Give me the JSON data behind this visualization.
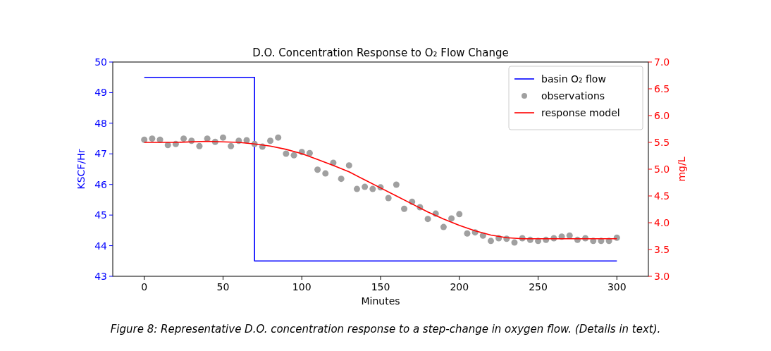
{
  "chart_data": {
    "type": "scatter",
    "title": "D.O. Concentration Response to O₂ Flow Change",
    "xlabel": "Minutes",
    "ylabel": "KSCF/Hr",
    "y2label": "mg/L",
    "xlim": [
      -20,
      320
    ],
    "xticks": [
      0,
      50,
      100,
      150,
      200,
      250,
      300
    ],
    "ylim": [
      43,
      50
    ],
    "yticks": [
      43,
      44,
      45,
      46,
      47,
      48,
      49,
      50
    ],
    "y2lim": [
      3.0,
      7.0
    ],
    "y2ticks": [
      {
        "value": 3.0,
        "label": "3.0"
      },
      {
        "value": 3.5,
        "label": "3.5"
      },
      {
        "value": 4.0,
        "label": "4.0"
      },
      {
        "value": 4.5,
        "label": "4.5"
      },
      {
        "value": 5.0,
        "label": "5.0"
      },
      {
        "value": 5.5,
        "label": "5.5"
      },
      {
        "value": 6.0,
        "label": "6.0"
      },
      {
        "value": 6.5,
        "label": "6.5"
      },
      {
        "value": 7.0,
        "label": "7.0"
      }
    ],
    "legend": "top right",
    "grid": false,
    "series": [
      {
        "name": "basin O₂ flow",
        "type": "step",
        "color": "#0000ff",
        "x": [
          0,
          70,
          300
        ],
        "values": [
          49.5,
          43.5,
          43.5
        ]
      },
      {
        "name": "observations",
        "marker": "circle",
        "color": "#a0a0a0",
        "x": [
          0,
          5,
          10,
          15,
          20,
          25,
          30,
          35,
          40,
          45,
          50,
          55,
          60,
          65,
          70,
          75,
          80,
          85,
          90,
          95,
          100,
          105,
          110,
          115,
          120,
          125,
          130,
          135,
          140,
          145,
          150,
          155,
          160,
          165,
          170,
          175,
          180,
          185,
          190,
          195,
          200,
          205,
          210,
          215,
          220,
          225,
          230,
          235,
          240,
          245,
          250,
          255,
          260,
          265,
          270,
          275,
          280,
          285,
          290,
          295,
          300
        ],
        "axis": "y2",
        "values": [
          5.55,
          5.57,
          5.55,
          5.45,
          5.47,
          5.57,
          5.53,
          5.43,
          5.57,
          5.51,
          5.59,
          5.43,
          5.53,
          5.54,
          5.47,
          5.42,
          5.53,
          5.59,
          5.29,
          5.26,
          5.32,
          5.3,
          4.99,
          4.92,
          5.12,
          4.82,
          5.07,
          4.63,
          4.67,
          4.63,
          4.66,
          4.46,
          4.71,
          4.26,
          4.39,
          4.29,
          4.07,
          4.17,
          3.92,
          4.08,
          4.16,
          3.8,
          3.82,
          3.76,
          3.66,
          3.71,
          3.7,
          3.63,
          3.71,
          3.68,
          3.66,
          3.68,
          3.71,
          3.74,
          3.76,
          3.68,
          3.71,
          3.66,
          3.66,
          3.66,
          3.72
        ]
      },
      {
        "name": "response model",
        "type": "line",
        "color": "#ff0000",
        "axis": "y2",
        "x": [
          0,
          20,
          40,
          60,
          70,
          80,
          90,
          100,
          110,
          120,
          130,
          140,
          150,
          160,
          170,
          180,
          190,
          200,
          210,
          220,
          230,
          240,
          260,
          280,
          300
        ],
        "values": [
          5.5,
          5.5,
          5.52,
          5.5,
          5.47,
          5.43,
          5.37,
          5.29,
          5.18,
          5.07,
          4.95,
          4.8,
          4.65,
          4.5,
          4.35,
          4.2,
          4.07,
          3.95,
          3.85,
          3.77,
          3.72,
          3.7,
          3.7,
          3.7,
          3.7
        ]
      }
    ],
    "annotations": [
      "Figure 8: Representative D.O. concentration response to a step-change in oxygen flow. (Details in text)."
    ]
  }
}
